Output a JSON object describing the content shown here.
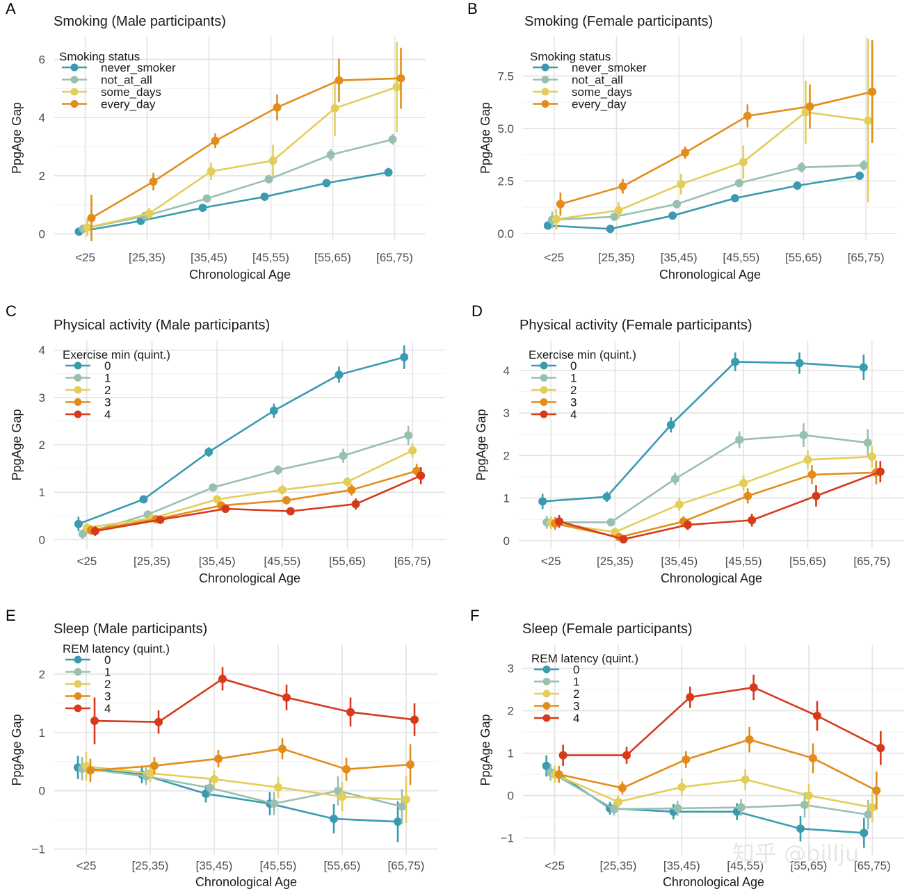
{
  "figure": {
    "x_categories": [
      "<25",
      "[25,35)",
      "[35,45)",
      "[45,55)",
      "[55,65)",
      "[65,75)"
    ],
    "xlabel": "Chronological Age",
    "ylabel": "PpgAge Gap",
    "watermark": "知乎 @billju"
  },
  "chart_data": [
    {
      "type": "line",
      "letter": "A",
      "title": "Smoking (Male participants)",
      "legend_title": "Smoking status",
      "ylim": [
        -0.2,
        6.8
      ],
      "yticks": [
        0,
        2,
        4,
        6
      ],
      "ytick_labels": [
        "0",
        "2",
        "4",
        "6"
      ],
      "series": [
        {
          "name": "never_smoker",
          "color": "#3a9ab0",
          "values": [
            0.08,
            0.45,
            0.9,
            1.28,
            1.75,
            2.12
          ],
          "err": [
            0.08,
            0.1,
            0.07,
            0.08,
            0.1,
            0.15
          ]
        },
        {
          "name": "not_at_all",
          "color": "#98c0b0",
          "values": [
            0.18,
            0.62,
            1.22,
            1.88,
            2.72,
            3.25
          ],
          "err": [
            0.15,
            0.12,
            0.12,
            0.12,
            0.2,
            0.18
          ]
        },
        {
          "name": "some_days",
          "color": "#e3ce5a",
          "values": [
            0.22,
            0.7,
            2.15,
            2.52,
            4.32,
            5.05
          ],
          "err": [
            0.3,
            0.2,
            0.3,
            0.55,
            0.95,
            1.55
          ]
        },
        {
          "name": "every_day",
          "color": "#e38c1a",
          "values": [
            0.55,
            1.8,
            3.2,
            4.35,
            5.28,
            5.35
          ],
          "err": [
            0.8,
            0.3,
            0.25,
            0.45,
            0.75,
            1.05
          ]
        }
      ]
    },
    {
      "type": "line",
      "letter": "B",
      "title": "Smoking (Female participants)",
      "legend_title": "Smoking status",
      "ylim": [
        -0.3,
        9.4
      ],
      "yticks": [
        0,
        2.5,
        5,
        7.5
      ],
      "ytick_labels": [
        "0.0",
        "2.5",
        "5.0",
        "7.5"
      ],
      "series": [
        {
          "name": "never_smoker",
          "color": "#3a9ab0",
          "values": [
            0.38,
            0.22,
            0.85,
            1.68,
            2.28,
            2.75
          ],
          "err": [
            0.2,
            0.15,
            0.15,
            0.15,
            0.18,
            0.2
          ]
        },
        {
          "name": "not_at_all",
          "color": "#98c0b0",
          "values": [
            0.65,
            0.8,
            1.4,
            2.4,
            3.15,
            3.25
          ],
          "err": [
            0.4,
            0.2,
            0.2,
            0.2,
            0.25,
            0.25
          ]
        },
        {
          "name": "some_days",
          "color": "#e3ce5a",
          "values": [
            0.68,
            1.1,
            2.35,
            3.4,
            5.78,
            5.38
          ],
          "err": [
            0.5,
            0.4,
            0.5,
            0.8,
            1.5,
            3.9
          ]
        },
        {
          "name": "every_day",
          "color": "#e38c1a",
          "values": [
            1.4,
            2.25,
            3.85,
            5.6,
            6.05,
            6.75
          ],
          "err": [
            0.55,
            0.35,
            0.3,
            0.55,
            1.05,
            2.45
          ]
        }
      ]
    },
    {
      "type": "line",
      "letter": "C",
      "title": "Physical activity (Male participants)",
      "legend_title": "Exercise min (quint.)",
      "ylim": [
        -0.2,
        4.2
      ],
      "yticks": [
        0,
        1,
        2,
        3,
        4
      ],
      "ytick_labels": [
        "0",
        "1",
        "2",
        "3",
        "4"
      ],
      "series": [
        {
          "name": "0",
          "color": "#3a9ab0",
          "values": [
            0.33,
            0.85,
            1.85,
            2.72,
            3.48,
            3.85
          ],
          "err": [
            0.15,
            0.07,
            0.1,
            0.15,
            0.17,
            0.25
          ]
        },
        {
          "name": "1",
          "color": "#98c0b0",
          "values": [
            0.12,
            0.53,
            1.1,
            1.47,
            1.77,
            2.2
          ],
          "err": [
            0.1,
            0.08,
            0.07,
            0.1,
            0.15,
            0.2
          ]
        },
        {
          "name": "2",
          "color": "#e3ce5a",
          "values": [
            0.25,
            0.45,
            0.85,
            1.05,
            1.22,
            1.88
          ],
          "err": [
            0.1,
            0.08,
            0.08,
            0.1,
            0.1,
            0.15
          ]
        },
        {
          "name": "3",
          "color": "#e38c1a",
          "values": [
            0.2,
            0.43,
            0.72,
            0.83,
            1.05,
            1.45
          ],
          "err": [
            0.1,
            0.06,
            0.08,
            0.08,
            0.12,
            0.15
          ]
        },
        {
          "name": "4",
          "color": "#d63a1a",
          "values": [
            0.18,
            0.42,
            0.65,
            0.6,
            0.75,
            1.35
          ],
          "err": [
            0.1,
            0.06,
            0.06,
            0.07,
            0.12,
            0.18
          ]
        }
      ]
    },
    {
      "type": "line",
      "letter": "D",
      "title": "Physical activity (Female participants)",
      "legend_title": "Exercise min (quint.)",
      "ylim": [
        -0.2,
        4.7
      ],
      "yticks": [
        0,
        1,
        2,
        3,
        4
      ],
      "ytick_labels": [
        "0",
        "1",
        "2",
        "3",
        "4"
      ],
      "series": [
        {
          "name": "0",
          "color": "#3a9ab0",
          "values": [
            0.92,
            1.03,
            2.72,
            4.2,
            4.17,
            4.07
          ],
          "err": [
            0.18,
            0.12,
            0.18,
            0.22,
            0.25,
            0.3
          ]
        },
        {
          "name": "1",
          "color": "#98c0b0",
          "values": [
            0.43,
            0.43,
            1.45,
            2.37,
            2.48,
            2.3
          ],
          "err": [
            0.15,
            0.1,
            0.15,
            0.2,
            0.28,
            0.32
          ]
        },
        {
          "name": "2",
          "color": "#e3ce5a",
          "values": [
            0.42,
            0.2,
            0.85,
            1.35,
            1.9,
            1.97
          ],
          "err": [
            0.15,
            0.08,
            0.15,
            0.18,
            0.22,
            0.25
          ]
        },
        {
          "name": "3",
          "color": "#e38c1a",
          "values": [
            0.4,
            0.08,
            0.45,
            1.05,
            1.55,
            1.6
          ],
          "err": [
            0.15,
            0.07,
            0.12,
            0.18,
            0.22,
            0.28
          ]
        },
        {
          "name": "4",
          "color": "#d63a1a",
          "values": [
            0.45,
            0.03,
            0.37,
            0.48,
            1.05,
            1.62
          ],
          "err": [
            0.15,
            0.06,
            0.12,
            0.15,
            0.25,
            0.25
          ]
        }
      ]
    },
    {
      "type": "line",
      "letter": "E",
      "title": "Sleep (Male participants)",
      "legend_title": "REM latency (quint.)",
      "ylim": [
        -1.1,
        2.5
      ],
      "yticks": [
        -1,
        0,
        1,
        2
      ],
      "ytick_labels": [
        "−1",
        "0",
        "1",
        "2"
      ],
      "series": [
        {
          "name": "0",
          "color": "#3a9ab0",
          "values": [
            0.4,
            0.28,
            -0.05,
            -0.22,
            -0.48,
            -0.53
          ],
          "err": [
            0.2,
            0.15,
            0.15,
            0.2,
            0.25,
            0.35
          ]
        },
        {
          "name": "1",
          "color": "#98c0b0",
          "values": [
            0.38,
            0.25,
            0.05,
            -0.22,
            0.0,
            -0.27
          ],
          "err": [
            0.2,
            0.15,
            0.15,
            0.2,
            0.25,
            0.3
          ]
        },
        {
          "name": "2",
          "color": "#e3ce5a",
          "values": [
            0.42,
            0.3,
            0.2,
            0.06,
            -0.1,
            -0.15
          ],
          "err": [
            0.25,
            0.15,
            0.15,
            0.18,
            0.25,
            0.4
          ]
        },
        {
          "name": "3",
          "color": "#e38c1a",
          "values": [
            0.35,
            0.43,
            0.55,
            0.72,
            0.37,
            0.45
          ],
          "err": [
            0.2,
            0.15,
            0.15,
            0.18,
            0.2,
            0.35
          ]
        },
        {
          "name": "4",
          "color": "#d63a1a",
          "values": [
            1.2,
            1.18,
            1.92,
            1.6,
            1.35,
            1.22
          ],
          "err": [
            0.4,
            0.2,
            0.2,
            0.22,
            0.25,
            0.28
          ]
        }
      ]
    },
    {
      "type": "line",
      "letter": "F",
      "title": "Sleep (Female participants)",
      "legend_title": "REM latency (quint.)",
      "ylim": [
        -1.4,
        3.55
      ],
      "yticks": [
        -1,
        0,
        1,
        2,
        3
      ],
      "ytick_labels": [
        "−1",
        "0",
        "1",
        "2",
        "3"
      ],
      "series": [
        {
          "name": "0",
          "color": "#3a9ab0",
          "values": [
            0.7,
            -0.3,
            -0.38,
            -0.38,
            -0.78,
            -0.88
          ],
          "err": [
            0.25,
            0.15,
            0.18,
            0.2,
            0.3,
            0.35
          ]
        },
        {
          "name": "1",
          "color": "#98c0b0",
          "values": [
            0.55,
            -0.32,
            -0.3,
            -0.28,
            -0.22,
            -0.45
          ],
          "err": [
            0.2,
            0.15,
            0.18,
            0.2,
            0.3,
            0.35
          ]
        },
        {
          "name": "2",
          "color": "#e3ce5a",
          "values": [
            0.5,
            -0.15,
            0.2,
            0.38,
            0.0,
            -0.28
          ],
          "err": [
            0.2,
            0.15,
            0.2,
            0.25,
            0.28,
            0.35
          ]
        },
        {
          "name": "3",
          "color": "#e38c1a",
          "values": [
            0.5,
            0.18,
            0.85,
            1.32,
            0.88,
            0.12
          ],
          "err": [
            0.2,
            0.15,
            0.2,
            0.3,
            0.35,
            0.45
          ]
        },
        {
          "name": "4",
          "color": "#d63a1a",
          "values": [
            0.95,
            0.95,
            2.32,
            2.55,
            1.88,
            1.12
          ],
          "err": [
            0.25,
            0.2,
            0.25,
            0.3,
            0.35,
            0.4
          ]
        }
      ]
    }
  ]
}
